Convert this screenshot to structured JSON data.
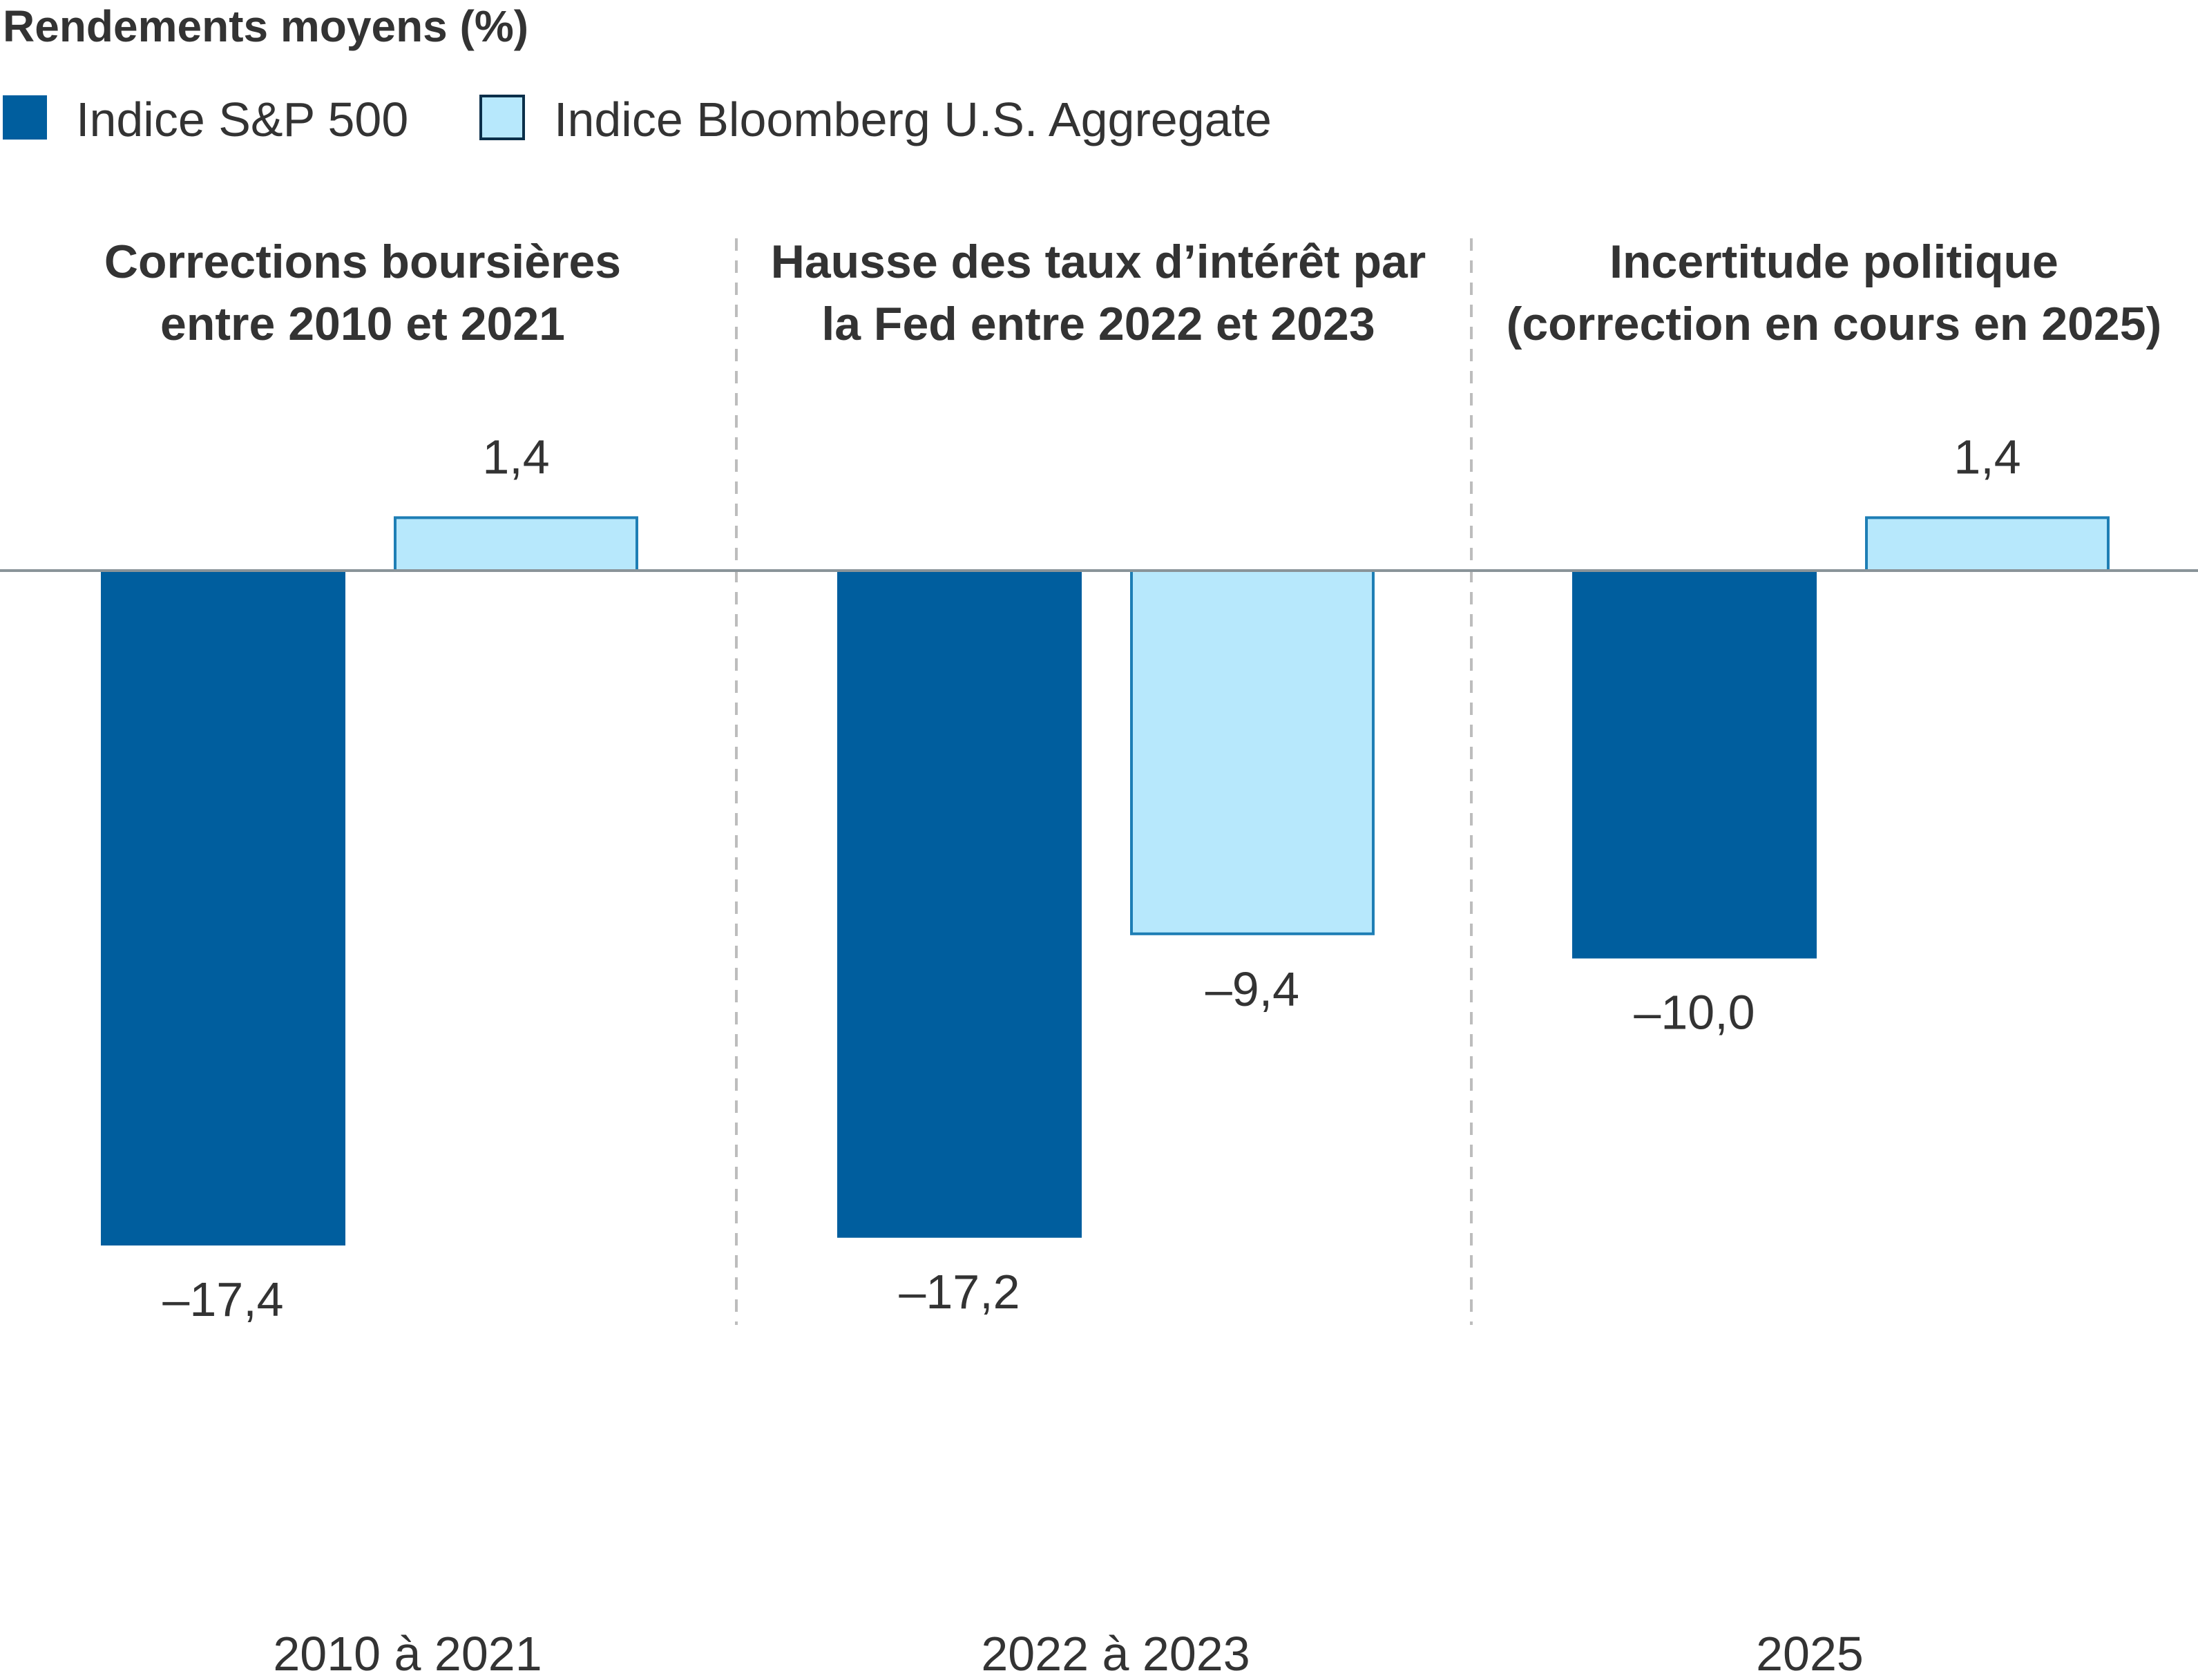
{
  "chart_data": {
    "type": "bar",
    "title": "Rendements moyens (%)",
    "xlabel": "",
    "ylabel": "",
    "ylim": [
      -17.4,
      1.4
    ],
    "grid": false,
    "legend_position": "top-left",
    "colors": {
      "sp500": "#005E9E",
      "bloomberg": "#B7E8FC",
      "bloomberg_stroke": "#1E7EB5",
      "zero_line": "#8A9499",
      "divider": "#BDBDBD"
    },
    "legend": [
      {
        "key": "sp500",
        "label": "Indice S&P 500"
      },
      {
        "key": "bloomberg",
        "label": "Indice Bloomberg U.S. Aggregate"
      }
    ],
    "categories": [
      "2010 à 2021",
      "2022 à 2023",
      "2025"
    ],
    "group_titles": [
      [
        "Corrections boursières",
        "entre 2010 et 2021"
      ],
      [
        "Hausse des taux d’intérêt par",
        "la Fed entre 2022 et 2023"
      ],
      [
        "Incertitude politique",
        "(correction en cours en 2025)"
      ]
    ],
    "series": [
      {
        "name": "Indice S&P 500",
        "key": "sp500",
        "values": [
          -17.4,
          -17.2,
          -10.0
        ],
        "labels": [
          "–17,4",
          "–17,2",
          "–10,0"
        ]
      },
      {
        "name": "Indice Bloomberg U.S. Aggregate",
        "key": "bloomberg",
        "values": [
          1.4,
          -9.4,
          1.4
        ],
        "labels": [
          "1,4",
          "–9,4",
          "1,4"
        ]
      }
    ]
  }
}
